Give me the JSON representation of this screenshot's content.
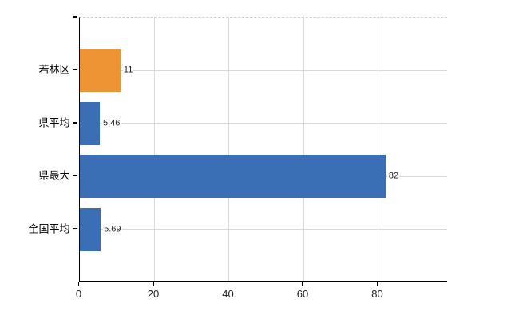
{
  "chart_data": {
    "type": "bar",
    "orientation": "horizontal",
    "title": "",
    "xlabel": "",
    "ylabel": "",
    "categories": [
      "若林区",
      "県平均",
      "県最大",
      "全国平均"
    ],
    "values": [
      11,
      5.46,
      82,
      5.69
    ],
    "value_labels": [
      "11",
      "5.46",
      "82",
      "5.69"
    ],
    "bar_colors": [
      "#ef9434",
      "#3a6eb5",
      "#3a6eb5",
      "#3a6eb5"
    ],
    "x_ticks": [
      0,
      20,
      40,
      60,
      80
    ],
    "x_tick_labels": [
      "0",
      "20",
      "40",
      "60",
      "80"
    ],
    "xlim": [
      0,
      98.6
    ],
    "grid": true,
    "legend": "none",
    "colors": {
      "axis": "#000000",
      "grid": "#d6dad6",
      "top_border": "#c9cdc9",
      "tick_text": "#222222",
      "value_text": "#1f1f1f",
      "background": "#ffffff"
    }
  }
}
